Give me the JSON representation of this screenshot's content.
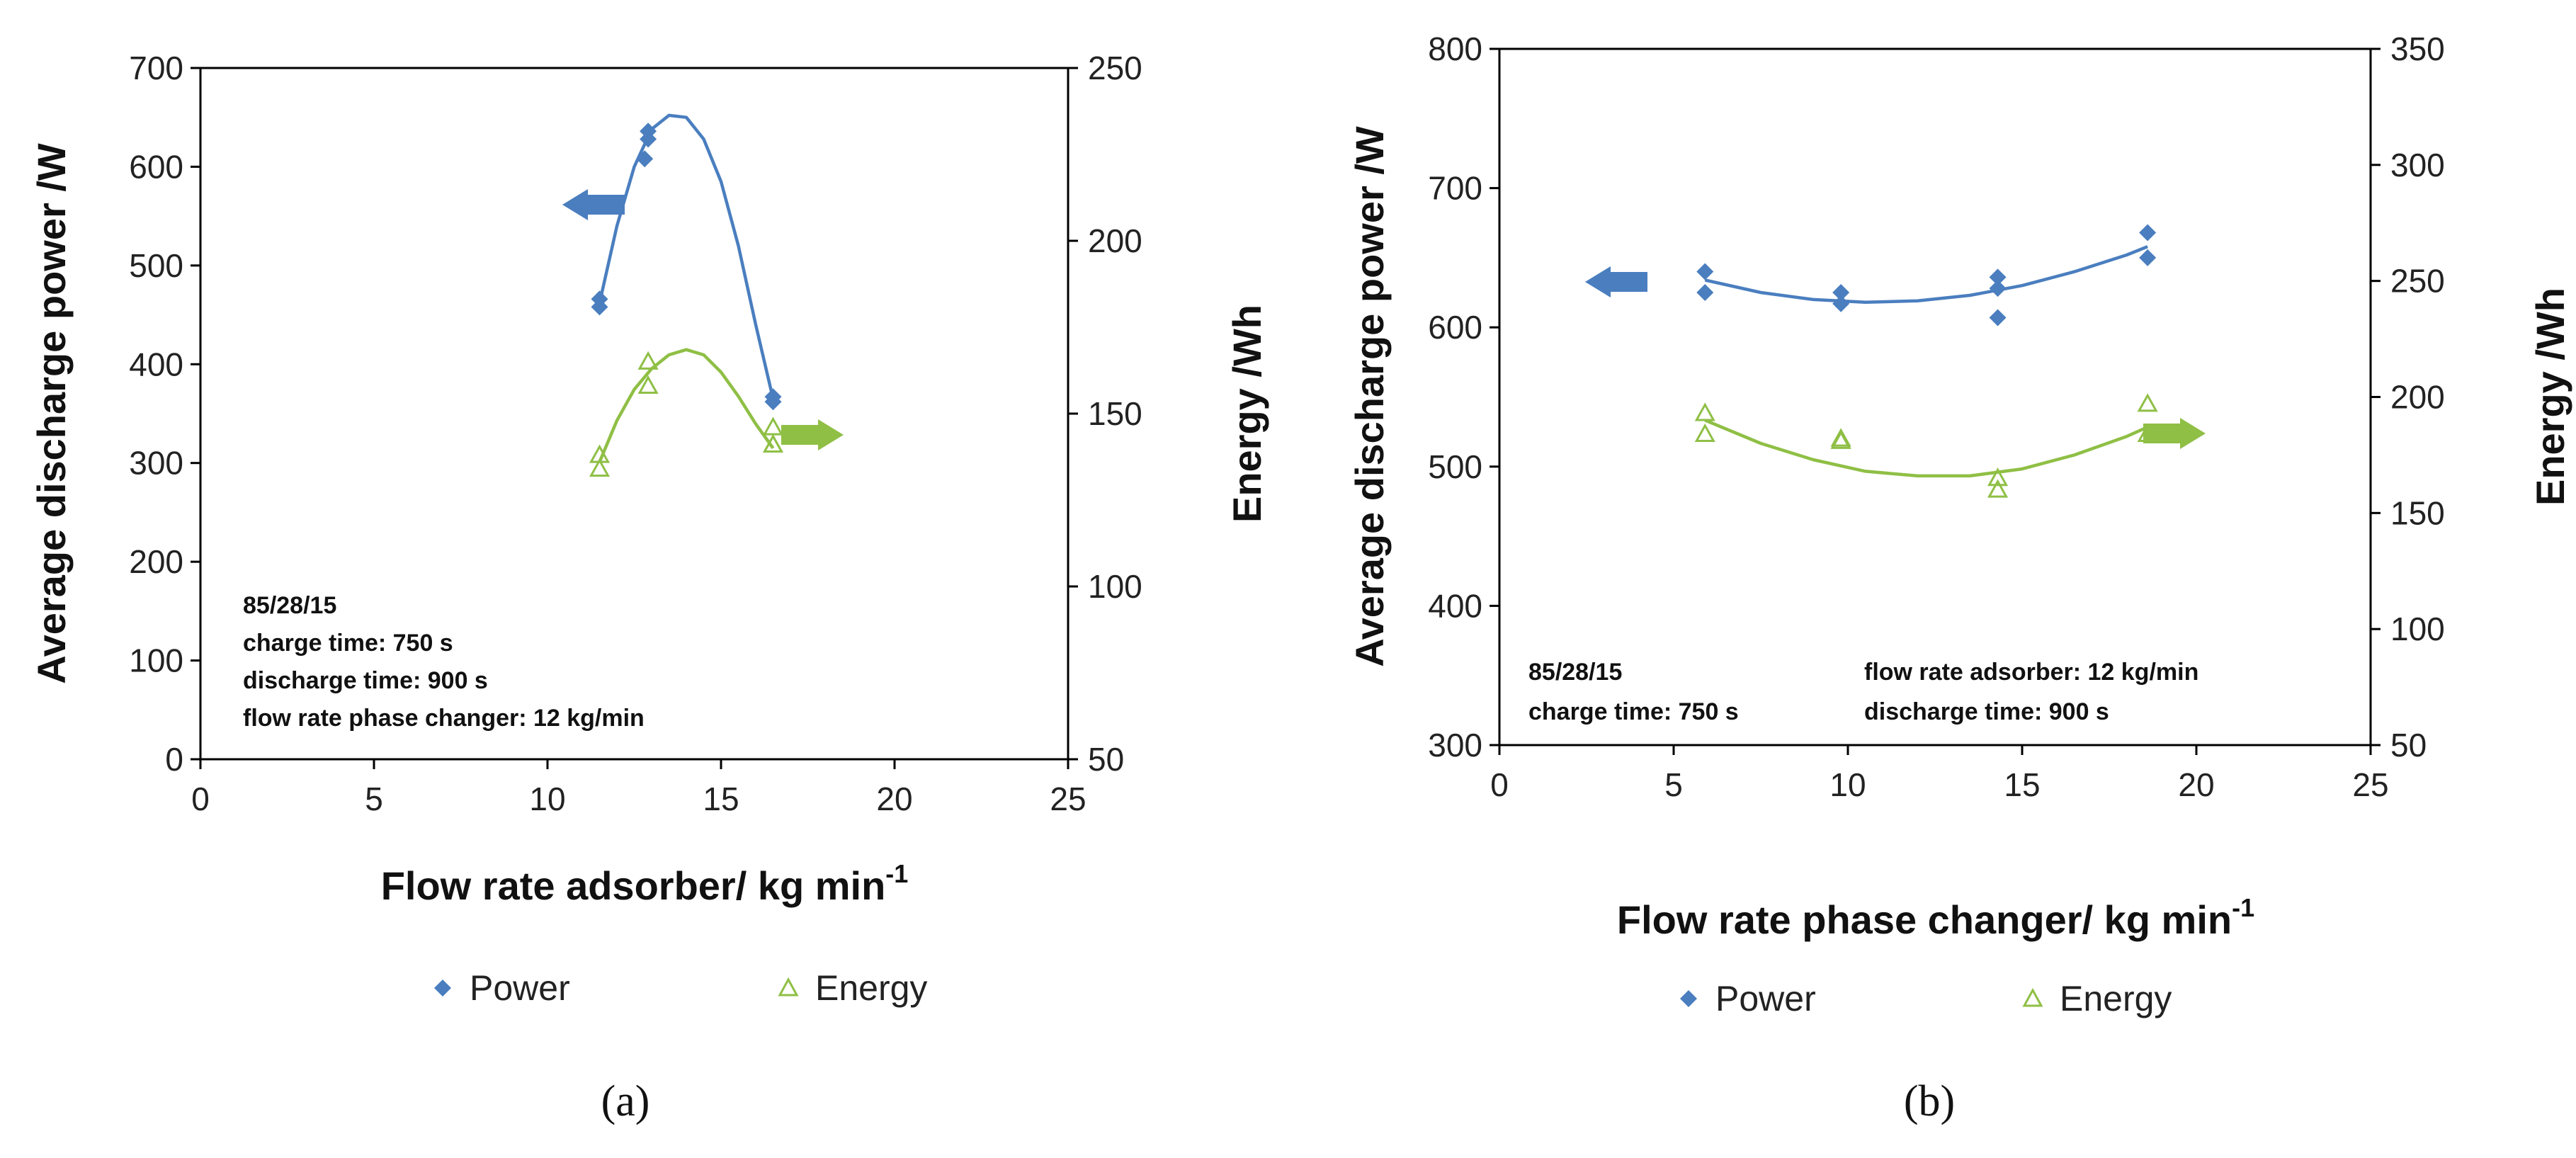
{
  "colors": {
    "power": "#4a7ebf",
    "energy": "#8fbf45",
    "axis": "#000000"
  },
  "chart_data": [
    {
      "type": "scatter",
      "panel_label": "(a)",
      "xlabel": "Flow rate adsorber/ kg min",
      "xlabel_sup": "-1",
      "ylabel": "Average discharge power /W",
      "y2label": "Energy /Wh",
      "xlim": [
        0,
        25
      ],
      "ylim": [
        0,
        700
      ],
      "y2lim": [
        50,
        250
      ],
      "xticks": [
        "0",
        "5",
        "10",
        "15",
        "20",
        "25"
      ],
      "yticks": [
        "0",
        "100",
        "200",
        "300",
        "400",
        "500",
        "600",
        "700"
      ],
      "y2ticks": [
        "50",
        "100",
        "150",
        "200",
        "250"
      ],
      "legend": {
        "placement": "bottom",
        "power": "Power",
        "energy": "Energy"
      },
      "annotations": [
        "85/28/15",
        "charge time: 750 s",
        "discharge time: 900 s",
        "flow rate phase changer: 12 kg/min"
      ],
      "arrows": {
        "power_direction": "left",
        "energy_direction": "right"
      },
      "series": [
        {
          "name": "Power",
          "axis": "left",
          "marker": "diamond",
          "points": [
            [
              11.5,
              458
            ],
            [
              11.5,
              466
            ],
            [
              12.8,
              608
            ],
            [
              12.9,
              628
            ],
            [
              12.9,
              636
            ],
            [
              16.5,
              362
            ],
            [
              16.5,
              367
            ]
          ],
          "trend": [
            [
              11.5,
              462
            ],
            [
              12.0,
              540
            ],
            [
              12.5,
              600
            ],
            [
              13.0,
              638
            ],
            [
              13.5,
              652
            ],
            [
              14.0,
              650
            ],
            [
              14.5,
              628
            ],
            [
              15.0,
              585
            ],
            [
              15.5,
              520
            ],
            [
              16.0,
              440
            ],
            [
              16.5,
              365
            ]
          ]
        },
        {
          "name": "Energy",
          "axis": "right",
          "marker": "triangle",
          "points": [
            [
              11.5,
              134
            ],
            [
              11.5,
              138
            ],
            [
              12.9,
              158
            ],
            [
              12.9,
              165
            ],
            [
              16.5,
              141
            ],
            [
              16.5,
              141
            ],
            [
              16.5,
              146
            ]
          ],
          "trend": [
            [
              11.5,
              136
            ],
            [
              12.0,
              148
            ],
            [
              12.5,
              157
            ],
            [
              13.0,
              163
            ],
            [
              13.5,
              167
            ],
            [
              14.0,
              168.5
            ],
            [
              14.5,
              167
            ],
            [
              15.0,
              162
            ],
            [
              15.5,
              155
            ],
            [
              16.0,
              147
            ],
            [
              16.5,
              140
            ]
          ]
        }
      ]
    },
    {
      "type": "scatter",
      "panel_label": "(b)",
      "xlabel": "Flow rate phase changer/ kg min",
      "xlabel_sup": "-1",
      "ylabel": "Average discharge power /W",
      "y2label": "Energy /Wh",
      "xlim": [
        0,
        25
      ],
      "ylim": [
        300,
        800
      ],
      "y2lim": [
        50,
        350
      ],
      "xticks": [
        "0",
        "5",
        "10",
        "15",
        "20",
        "25"
      ],
      "yticks": [
        "300",
        "400",
        "500",
        "600",
        "700",
        "800"
      ],
      "y2ticks": [
        "50",
        "100",
        "150",
        "200",
        "250",
        "300",
        "350"
      ],
      "legend": {
        "placement": "bottom",
        "power": "Power",
        "energy": "Energy"
      },
      "annotations_left": [
        "85/28/15",
        "charge time: 750 s"
      ],
      "annotations_right": [
        "flow rate adsorber: 12 kg/min",
        "discharge time: 900 s"
      ],
      "arrows": {
        "power_direction": "left",
        "energy_direction": "right"
      },
      "series": [
        {
          "name": "Power",
          "axis": "left",
          "marker": "diamond",
          "points": [
            [
              5.9,
              640
            ],
            [
              5.9,
              625
            ],
            [
              9.8,
              625
            ],
            [
              9.8,
              617
            ],
            [
              14.3,
              636
            ],
            [
              14.3,
              628
            ],
            [
              14.3,
              607
            ],
            [
              18.6,
              668
            ],
            [
              18.6,
              650
            ]
          ],
          "trend": [
            [
              5.9,
              634
            ],
            [
              7.5,
              625
            ],
            [
              9.0,
              620
            ],
            [
              10.5,
              618
            ],
            [
              12.0,
              619
            ],
            [
              13.5,
              623
            ],
            [
              15.0,
              630
            ],
            [
              16.5,
              640
            ],
            [
              18.0,
              652
            ],
            [
              18.6,
              658
            ]
          ]
        },
        {
          "name": "Energy",
          "axis": "right",
          "marker": "triangle",
          "points": [
            [
              5.9,
              193
            ],
            [
              5.9,
              184
            ],
            [
              9.8,
              181
            ],
            [
              9.8,
              182
            ],
            [
              14.3,
              165
            ],
            [
              14.3,
              160
            ],
            [
              18.6,
              197
            ],
            [
              18.6,
              184
            ]
          ],
          "trend": [
            [
              5.9,
              190
            ],
            [
              7.5,
              180
            ],
            [
              9.0,
              173
            ],
            [
              10.5,
              168
            ],
            [
              12.0,
              166
            ],
            [
              13.5,
              166
            ],
            [
              15.0,
              169
            ],
            [
              16.5,
              175
            ],
            [
              18.0,
              183
            ],
            [
              18.6,
              187
            ]
          ]
        }
      ]
    }
  ]
}
